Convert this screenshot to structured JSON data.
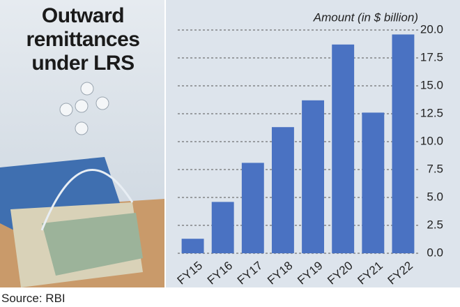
{
  "chart_data": {
    "type": "bar",
    "title": "Outward remittances under LRS",
    "y_label": "Amount (in $ billion)",
    "source": "Source: RBI",
    "categories": [
      "FY15",
      "FY16",
      "FY17",
      "FY18",
      "FY19",
      "FY20",
      "FY21",
      "FY22"
    ],
    "values": [
      1.3,
      4.6,
      8.1,
      11.3,
      13.7,
      18.7,
      12.6,
      19.6
    ],
    "color": "#4a72c2",
    "ylim": [
      0,
      20
    ],
    "yticks": [
      {
        "value": 0,
        "label": "0.0"
      },
      2.5,
      {
        "value": 5,
        "label": "5.0"
      },
      7.5,
      {
        "value": 10,
        "label": "10.0"
      },
      12.5,
      {
        "value": 15,
        "label": "15.0"
      },
      17.5,
      {
        "value": 20,
        "label": "20.0"
      }
    ],
    "grid": true
  }
}
